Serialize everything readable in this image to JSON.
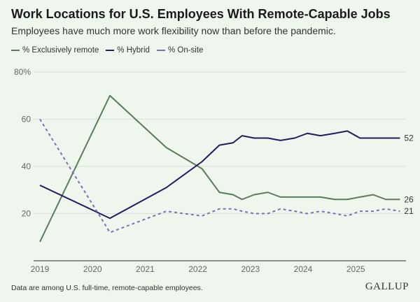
{
  "chart_data": {
    "type": "line",
    "title": "Work Locations for U.S. Employees With Remote-Capable Jobs",
    "subtitle": "Employees have much more work flexibility now than before the pandemic.",
    "xlabel": "",
    "ylabel": "",
    "ylim": [
      0,
      80
    ],
    "xlim": [
      2019,
      2025.9
    ],
    "yticks": [
      20,
      40,
      60,
      80
    ],
    "ytick_labels": [
      "20",
      "40",
      "60",
      "80%"
    ],
    "xticks": [
      2019,
      2020,
      2021,
      2022,
      2023,
      2024,
      2025
    ],
    "xtick_labels": [
      "2019",
      "2020",
      "2021",
      "2022",
      "2023",
      "2024",
      "2025"
    ],
    "grid": true,
    "legend_position": "top-left",
    "x": [
      2019.0,
      2020.33,
      2021.4,
      2022.08,
      2022.41,
      2022.67,
      2022.84,
      2023.07,
      2023.33,
      2023.57,
      2023.84,
      2024.08,
      2024.33,
      2024.6,
      2024.84,
      2025.08,
      2025.33,
      2025.57,
      2025.84
    ],
    "series": [
      {
        "name": "% Exclusively remote",
        "color": "#5b7b5b",
        "dashed": false,
        "end_label": "26",
        "values": [
          8,
          70,
          48,
          39,
          29,
          28,
          26,
          28,
          29,
          27,
          27,
          27,
          27,
          26,
          26,
          27,
          28,
          26,
          26
        ]
      },
      {
        "name": "% Hybrid",
        "color": "#1e1e5c",
        "dashed": false,
        "end_label": "52",
        "values": [
          32,
          18,
          31,
          42,
          49,
          50,
          53,
          52,
          52,
          51,
          52,
          54,
          53,
          54,
          55,
          52,
          52,
          52,
          52
        ]
      },
      {
        "name": "% On-site",
        "color": "#7474b4",
        "dashed": true,
        "end_label": "21",
        "values": [
          60,
          12,
          21,
          19,
          22,
          22,
          21,
          20,
          20,
          22,
          21,
          20,
          21,
          20,
          19,
          21,
          21,
          22,
          21
        ]
      }
    ]
  },
  "footer": "Data are among U.S. full-time, remote-capable employees.",
  "logo": "GALLUP"
}
